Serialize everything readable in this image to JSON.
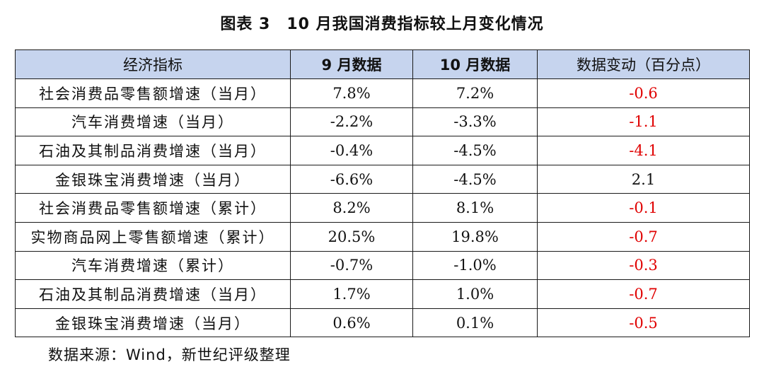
{
  "title": "图表 3　10 月我国消费指标较上月变化情况",
  "table": {
    "headers": [
      "经济指标",
      "9 月数据",
      "10 月数据",
      "数据变动（百分点）"
    ],
    "rows": [
      {
        "indicator": "社会消费品零售额增速（当月）",
        "sep": "7.8%",
        "oct": "7.2%",
        "change": "-0.6"
      },
      {
        "indicator": "汽车消费增速（当月）",
        "sep": "-2.2%",
        "oct": "-3.3%",
        "change": "-1.1"
      },
      {
        "indicator": "石油及其制品消费增速（当月）",
        "sep": "-0.4%",
        "oct": "-4.5%",
        "change": "-4.1"
      },
      {
        "indicator": "金银珠宝消费增速（当月）",
        "sep": "-6.6%",
        "oct": "-4.5%",
        "change": "2.1"
      },
      {
        "indicator": "社会消费品零售额增速（累计）",
        "sep": "8.2%",
        "oct": "8.1%",
        "change": "-0.1"
      },
      {
        "indicator": "实物商品网上零售额增速（累计）",
        "sep": "20.5%",
        "oct": "19.8%",
        "change": "-0.7"
      },
      {
        "indicator": "汽车消费增速（累计）",
        "sep": "-0.7%",
        "oct": "-1.0%",
        "change": "-0.3"
      },
      {
        "indicator": "石油及其制品消费增速（当月）",
        "sep": "1.7%",
        "oct": "1.0%",
        "change": "-0.7"
      },
      {
        "indicator": "金银珠宝消费增速（当月）",
        "sep": "0.6%",
        "oct": "0.1%",
        "change": "-0.5"
      }
    ]
  },
  "source": "数据来源：Wind，新世纪评级整理",
  "colors": {
    "header_bg": "#c6d4ee",
    "negative": "#e00000",
    "text": "#111111"
  }
}
